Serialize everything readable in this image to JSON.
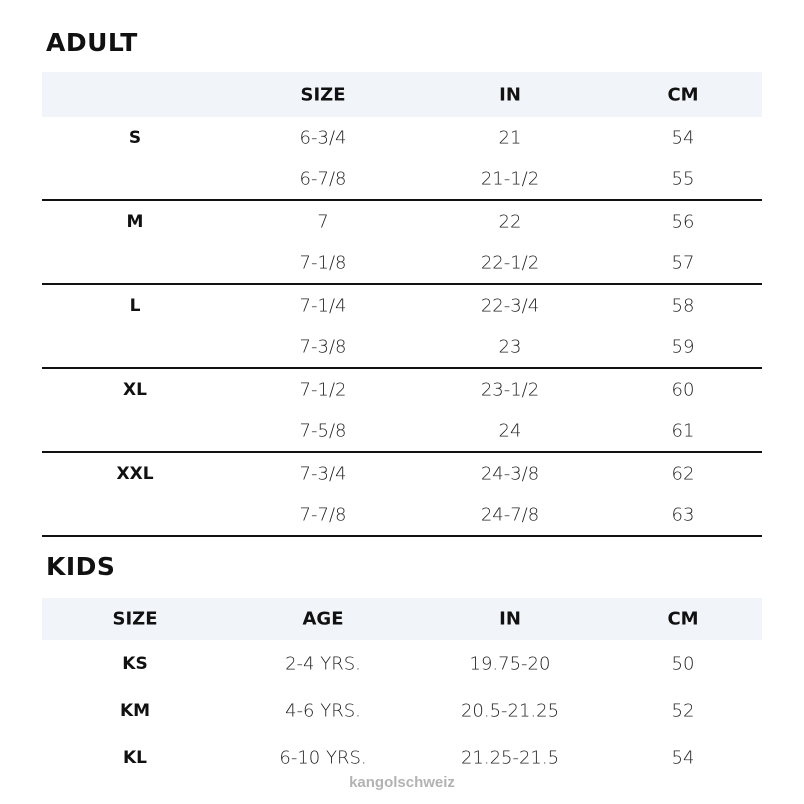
{
  "adult": {
    "title": "ADULT",
    "headers": [
      "",
      "SIZE",
      "IN",
      "CM"
    ],
    "groups": [
      {
        "label": "S",
        "rows": [
          [
            "6-3/4",
            "21",
            "54"
          ],
          [
            "6-7/8",
            "21-1/2",
            "55"
          ]
        ]
      },
      {
        "label": "M",
        "rows": [
          [
            "7",
            "22",
            "56"
          ],
          [
            "7-1/8",
            "22-1/2",
            "57"
          ]
        ]
      },
      {
        "label": "L",
        "rows": [
          [
            "7-1/4",
            "22-3/4",
            "58"
          ],
          [
            "7-3/8",
            "23",
            "59"
          ]
        ]
      },
      {
        "label": "XL",
        "rows": [
          [
            "7-1/2",
            "23-1/2",
            "60"
          ],
          [
            "7-5/8",
            "24",
            "61"
          ]
        ]
      },
      {
        "label": "XXL",
        "rows": [
          [
            "7-3/4",
            "24-3/8",
            "62"
          ],
          [
            "7-7/8",
            "24-7/8",
            "63"
          ]
        ]
      }
    ]
  },
  "kids": {
    "title": "KIDS",
    "headers": [
      "SIZE",
      "AGE",
      "IN",
      "CM"
    ],
    "rows": [
      [
        "KS",
        "2-4 YRS.",
        "19.75-20",
        "50"
      ],
      [
        "KM",
        "4-6 YRS.",
        "20.5-21.25",
        "52"
      ],
      [
        "KL",
        "6-10 YRS.",
        "21.25-21.5",
        "54"
      ]
    ]
  },
  "watermark": "kangolschweiz",
  "colors": {
    "header_bg": "#f1f4f8",
    "text": "#111111",
    "watermark": "#b3b3b3"
  }
}
